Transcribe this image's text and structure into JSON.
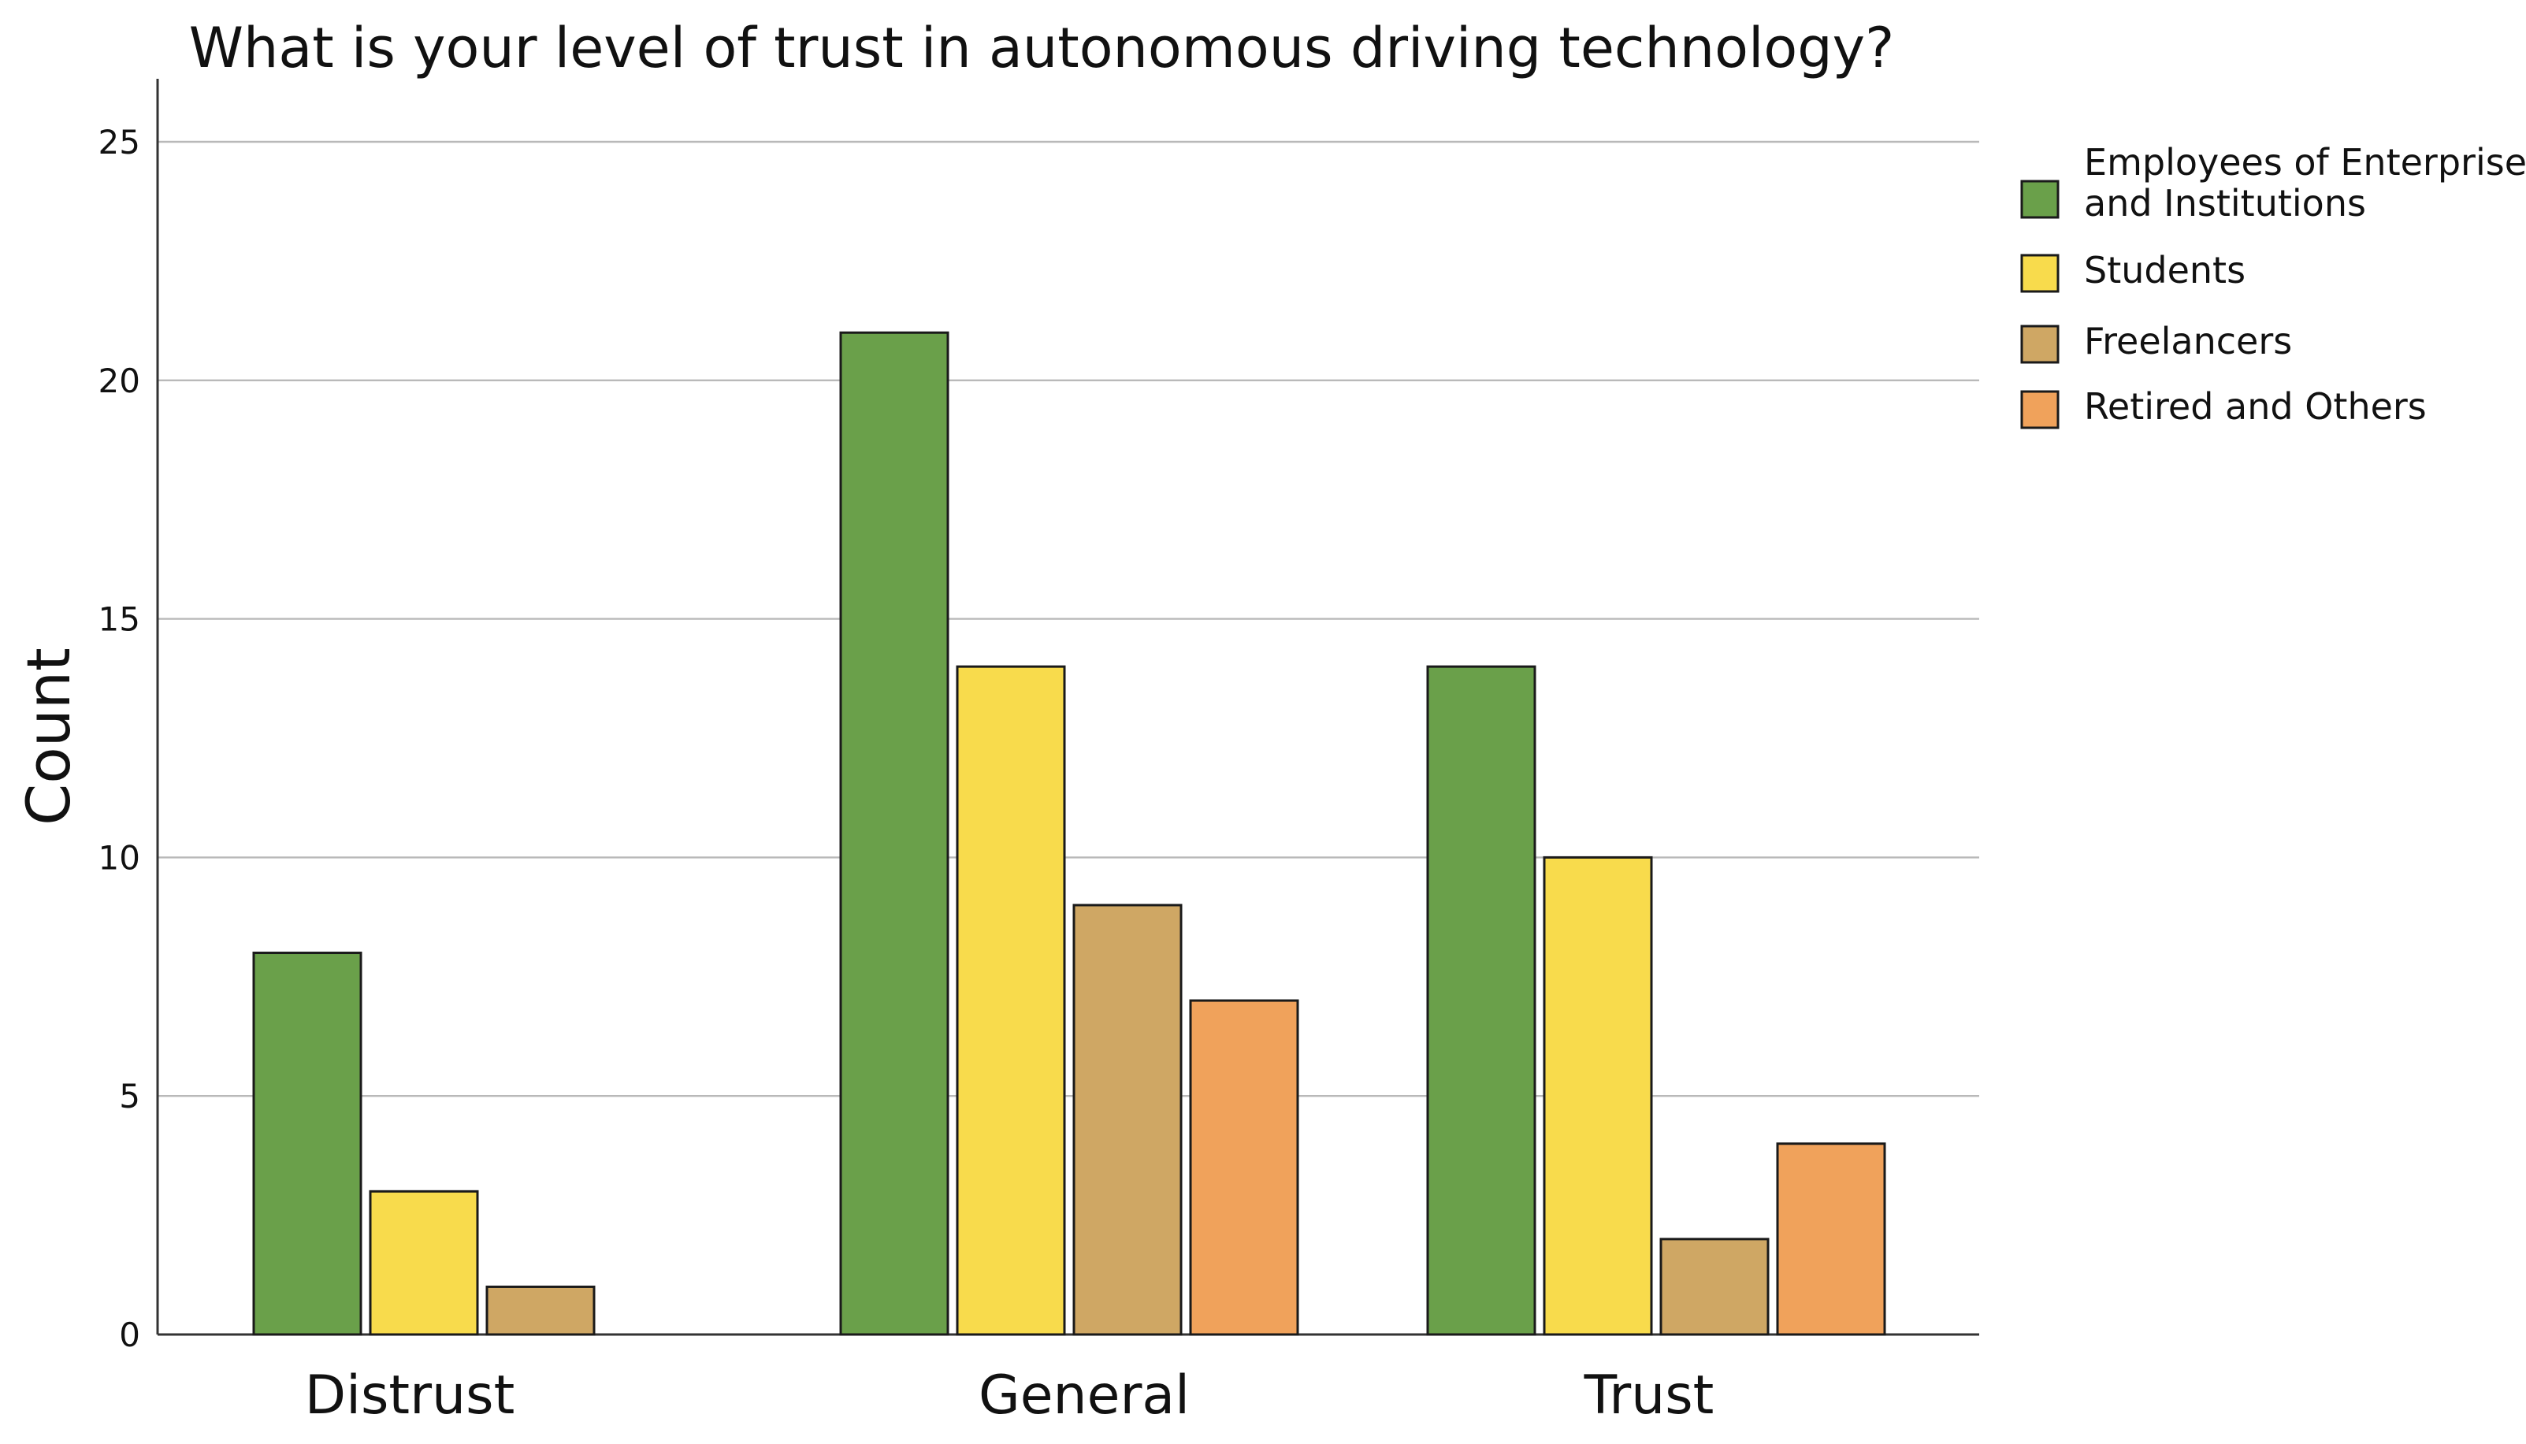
{
  "chart_data": {
    "type": "bar",
    "title": "What is your level of trust in autonomous driving technology?",
    "xlabel": "",
    "ylabel": "Count",
    "ylim": [
      0,
      25
    ],
    "yticks": [
      0,
      5,
      10,
      15,
      20,
      25
    ],
    "grid": true,
    "legend_position": "top-right",
    "categories": [
      "Distrust",
      "General",
      "Trust"
    ],
    "series": [
      {
        "name": "Employees of Enterprises and Institutions",
        "legend_lines": [
          "Employees of Enterprises",
          "and Institutions"
        ],
        "color": "#6aa04a",
        "values": [
          8,
          21,
          14
        ]
      },
      {
        "name": "Students",
        "legend_lines": [
          "Students"
        ],
        "color": "#f8db4c",
        "values": [
          3,
          14,
          10
        ]
      },
      {
        "name": "Freelancers",
        "legend_lines": [
          "Freelancers"
        ],
        "color": "#cfa764",
        "values": [
          1,
          9,
          2
        ]
      },
      {
        "name": "Retired and Others",
        "legend_lines": [
          "Retired and Others"
        ],
        "color": "#f0a25b",
        "values": [
          0,
          7,
          4
        ]
      }
    ]
  }
}
